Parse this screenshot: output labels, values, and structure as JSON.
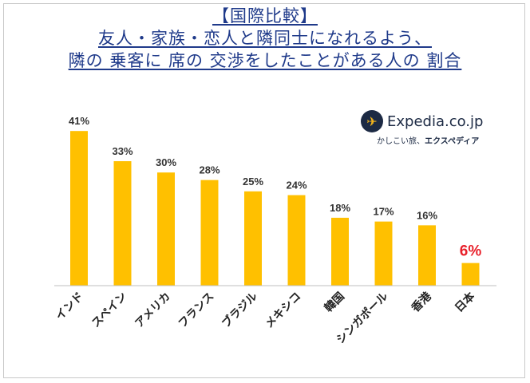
{
  "title": {
    "line1": "【国際比較】",
    "line2": "友人・家族・恋人と隣同士になれるよう、",
    "line3": "隣の 乗客に 席の 交渉をしたことがある人の 割合"
  },
  "logo": {
    "name": "Expedia.co.jp",
    "tagline_prefix": "かしこい旅、",
    "tagline_brand": "エクスペディア"
  },
  "colors": {
    "bar": "#FFC000",
    "label": "#333333",
    "highlight": "#E8202A",
    "title": "#1F3A8A"
  },
  "chart_data": {
    "type": "bar",
    "categories": [
      "インド",
      "スペイン",
      "アメリカ",
      "フランス",
      "ブラジル",
      "メキシコ",
      "韓国",
      "シンガポール",
      "香港",
      "日本"
    ],
    "values": [
      41,
      33,
      30,
      28,
      25,
      24,
      18,
      17,
      16,
      6
    ],
    "value_labels": [
      "41%",
      "33%",
      "30%",
      "28%",
      "25%",
      "24%",
      "18%",
      "17%",
      "16%",
      "6%"
    ],
    "highlight_index": 9,
    "ylim": [
      0,
      44
    ],
    "grid": false
  }
}
